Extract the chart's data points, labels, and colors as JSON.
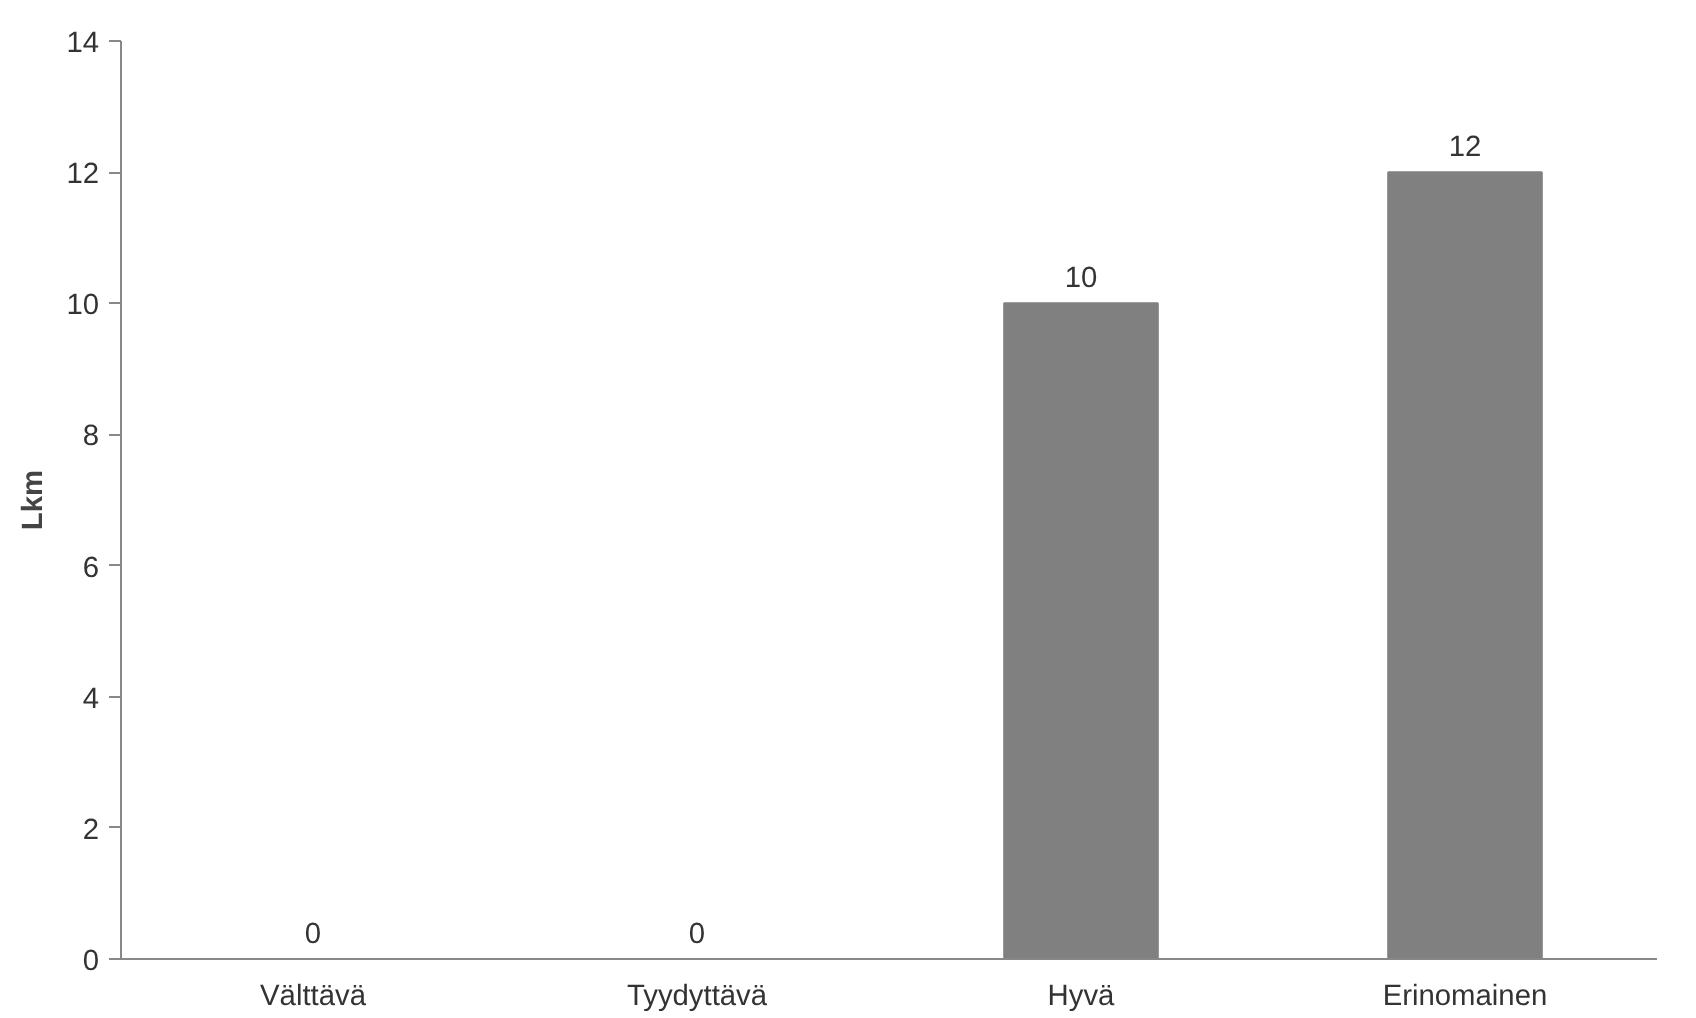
{
  "chart_data": {
    "type": "bar",
    "ylabel": "Lkm",
    "categories": [
      "Välttävä",
      "Tyydyttävä",
      "Hyvä",
      "Erinomainen"
    ],
    "values": [
      0,
      0,
      10,
      12
    ],
    "color": "#808080",
    "ylim": [
      0,
      14
    ],
    "yticks": [
      0,
      2,
      4,
      6,
      8,
      10,
      12,
      14
    ],
    "grid": false,
    "data_labels": true
  }
}
